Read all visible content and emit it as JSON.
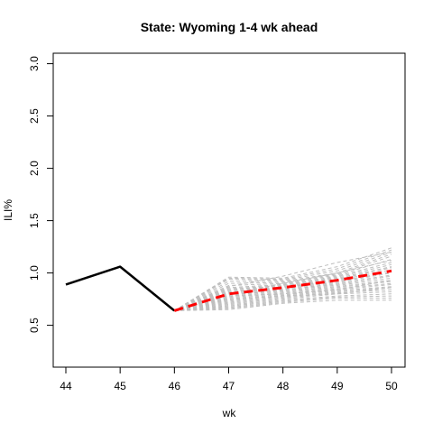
{
  "chart_data": {
    "type": "line",
    "title": "State: Wyoming 1-4 wk ahead",
    "xlabel": "wk",
    "ylabel": "ILI%",
    "xlim": [
      44,
      50
    ],
    "ylim": [
      0.1,
      3.1
    ],
    "x_ticks": [
      44,
      45,
      46,
      47,
      48,
      49,
      50
    ],
    "y_ticks": [
      0.5,
      1.0,
      1.5,
      2.0,
      2.5,
      3.0
    ],
    "y_tick_labels": [
      "0.5",
      "1.0",
      "1.5",
      "2.0",
      "2.5",
      "3.0"
    ],
    "grid": false,
    "observed": {
      "color": "#000000",
      "x": [
        44,
        45,
        46
      ],
      "y": [
        0.89,
        1.06,
        0.64
      ]
    },
    "mean_forecast": {
      "color": "#ff0000",
      "style": "dashed",
      "x": [
        46,
        47,
        48,
        49,
        50
      ],
      "y": [
        0.64,
        0.8,
        0.86,
        0.93,
        1.02
      ]
    },
    "trajectories": {
      "color": "#bebebe",
      "style": "dashed",
      "x": [
        46,
        47,
        48,
        49,
        50
      ],
      "paths": [
        [
          0.64,
          0.96,
          0.95,
          1.06,
          1.24
        ],
        [
          0.64,
          0.95,
          0.94,
          1.04,
          1.22
        ],
        [
          0.64,
          0.94,
          0.93,
          1.02,
          1.2
        ],
        [
          0.64,
          0.92,
          0.92,
          1.0,
          1.18
        ],
        [
          0.64,
          0.9,
          0.91,
          0.99,
          1.16
        ],
        [
          0.64,
          0.88,
          0.9,
          0.98,
          1.13
        ],
        [
          0.64,
          0.86,
          0.89,
          0.97,
          1.1
        ],
        [
          0.64,
          0.85,
          0.88,
          0.96,
          1.08
        ],
        [
          0.64,
          0.84,
          0.88,
          0.95,
          1.06
        ],
        [
          0.64,
          0.83,
          0.87,
          0.94,
          1.05
        ],
        [
          0.64,
          0.82,
          0.86,
          0.93,
          1.03
        ],
        [
          0.64,
          0.81,
          0.86,
          0.92,
          1.01
        ],
        [
          0.64,
          0.8,
          0.85,
          0.91,
          1.0
        ],
        [
          0.64,
          0.79,
          0.84,
          0.9,
          0.98
        ],
        [
          0.64,
          0.78,
          0.84,
          0.89,
          0.97
        ],
        [
          0.64,
          0.77,
          0.83,
          0.88,
          0.95
        ],
        [
          0.64,
          0.76,
          0.82,
          0.87,
          0.93
        ],
        [
          0.64,
          0.75,
          0.81,
          0.86,
          0.92
        ],
        [
          0.64,
          0.74,
          0.8,
          0.85,
          0.9
        ],
        [
          0.64,
          0.73,
          0.79,
          0.84,
          0.89
        ],
        [
          0.64,
          0.72,
          0.78,
          0.83,
          0.87
        ],
        [
          0.64,
          0.71,
          0.77,
          0.82,
          0.86
        ],
        [
          0.64,
          0.7,
          0.76,
          0.81,
          0.84
        ],
        [
          0.64,
          0.69,
          0.75,
          0.8,
          0.82
        ],
        [
          0.64,
          0.68,
          0.74,
          0.78,
          0.8
        ],
        [
          0.64,
          0.67,
          0.73,
          0.77,
          0.78
        ],
        [
          0.64,
          0.66,
          0.72,
          0.76,
          0.76
        ],
        [
          0.64,
          0.65,
          0.71,
          0.74,
          0.74
        ],
        [
          0.64,
          0.87,
          0.97,
          1.1,
          1.2
        ],
        [
          0.64,
          0.8,
          0.9,
          1.0,
          1.12
        ],
        [
          0.64,
          0.75,
          0.78,
          0.8,
          0.86
        ],
        [
          0.64,
          0.78,
          0.8,
          0.84,
          0.93
        ]
      ]
    }
  }
}
